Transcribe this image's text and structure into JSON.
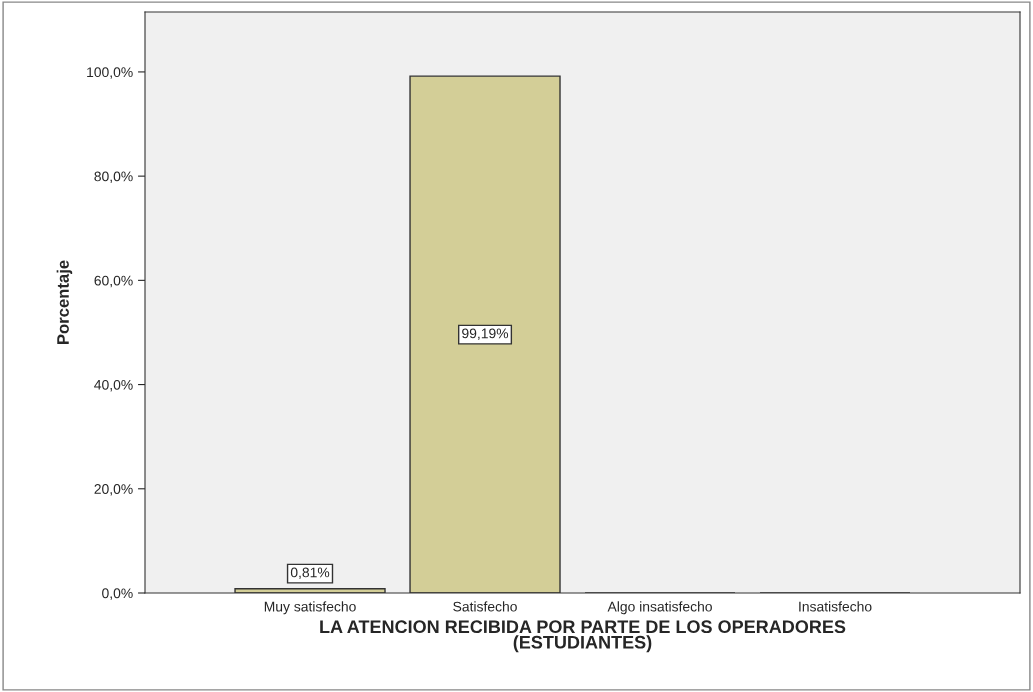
{
  "chart_data": {
    "type": "bar",
    "xlabel": "LA ATENCION RECIBIDA POR PARTE DE LOS OPERADORES\n(ESTUDIANTES)",
    "ylabel": "Porcentaje",
    "categories": [
      "Muy satisfecho",
      "Satisfecho",
      "Algo insatisfecho",
      "Insatisfecho"
    ],
    "values": [
      0.81,
      99.19,
      0,
      0
    ],
    "value_labels": [
      "0,81%",
      "99,19%",
      null,
      null
    ],
    "color": "#d3ce97",
    "ylim": [
      0,
      111.5
    ],
    "yticks": [
      {
        "value": 0,
        "label": "0,0%"
      },
      {
        "value": 20,
        "label": "20,0%"
      },
      {
        "value": 40,
        "label": "40,0%"
      },
      {
        "value": 60,
        "label": "60,0%"
      },
      {
        "value": 80,
        "label": "80,0%"
      },
      {
        "value": 100,
        "label": "100,0%"
      }
    ],
    "grid": false,
    "legend": false
  }
}
